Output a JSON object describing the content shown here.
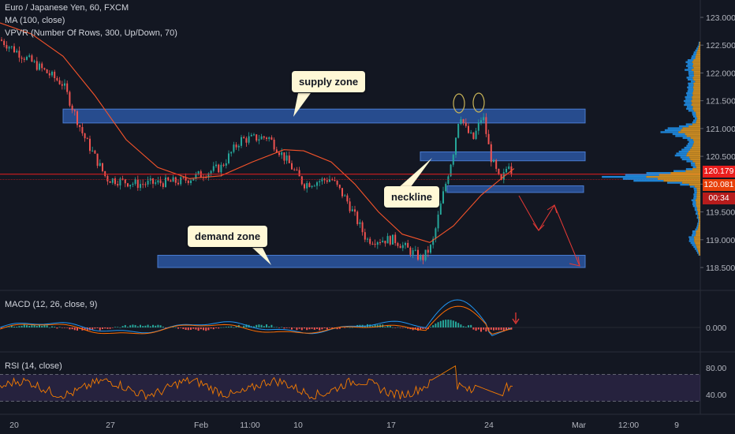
{
  "header": {
    "symbol_line": "Euro / Japanese Yen, 60, FXCM",
    "ma_line": "MA (100, close)",
    "vpvr_line": "VPVR (Number Of Rows, 300, Up/Down, 70)"
  },
  "annotations": {
    "supply_zone": "supply zone",
    "neckline": "neckline",
    "demand_zone": "demand zone"
  },
  "price_axis": {
    "ticks": [
      "123.000",
      "122.500",
      "122.000",
      "121.500",
      "121.000",
      "120.500",
      "120.000",
      "119.500",
      "119.000",
      "118.500"
    ],
    "last_price": "120.179",
    "ma_price": "120.081",
    "countdown": "00:34"
  },
  "time_axis": {
    "ticks": [
      "20",
      "27",
      "Feb",
      "11:00",
      "10",
      "17",
      "24",
      "Mar",
      "12:00",
      "9"
    ]
  },
  "macd": {
    "label": "MACD (12, 26, close, 9)",
    "ticks": [
      "0.000"
    ]
  },
  "rsi": {
    "label": "RSI (14, close)",
    "ticks": [
      "80.00",
      "40.00"
    ]
  },
  "colors": {
    "background": "#131722",
    "up_candle": "#26a69a",
    "down_candle": "#ef5350",
    "ma_line": "#f5532a",
    "zone_fill": "#2f5fb3",
    "price_line": "#e91e1e",
    "ma_tag": "#e8400a",
    "vpvr_up": "#2196f3",
    "vpvr_down": "#f5a623",
    "macd_line": "#2196f3",
    "signal_line": "#ff6d00",
    "rsi_line": "#f57c00",
    "rsi_band": "#7e57c2",
    "callout_bg": "#fff8d6"
  },
  "chart_data": {
    "type": "candlestick",
    "price_range": [
      118.3,
      123.15
    ],
    "price_axis_ticks": [
      123.0,
      122.5,
      122.0,
      121.5,
      121.0,
      120.5,
      120.0,
      119.5,
      119.0,
      118.5
    ],
    "last_price": 120.179,
    "ma_value": 120.081,
    "zones": [
      {
        "name": "supply zone",
        "top": 121.35,
        "bottom": 121.1
      },
      {
        "name": "neckline zone",
        "top": 120.58,
        "bottom": 120.42
      },
      {
        "name": "support box",
        "top": 119.97,
        "bottom": 119.85
      },
      {
        "name": "demand zone",
        "top": 118.72,
        "bottom": 118.5
      }
    ],
    "rsi_levels": [
      70,
      30
    ],
    "rsi_ticks": [
      80,
      40
    ],
    "macd_ticks": [
      0
    ]
  }
}
